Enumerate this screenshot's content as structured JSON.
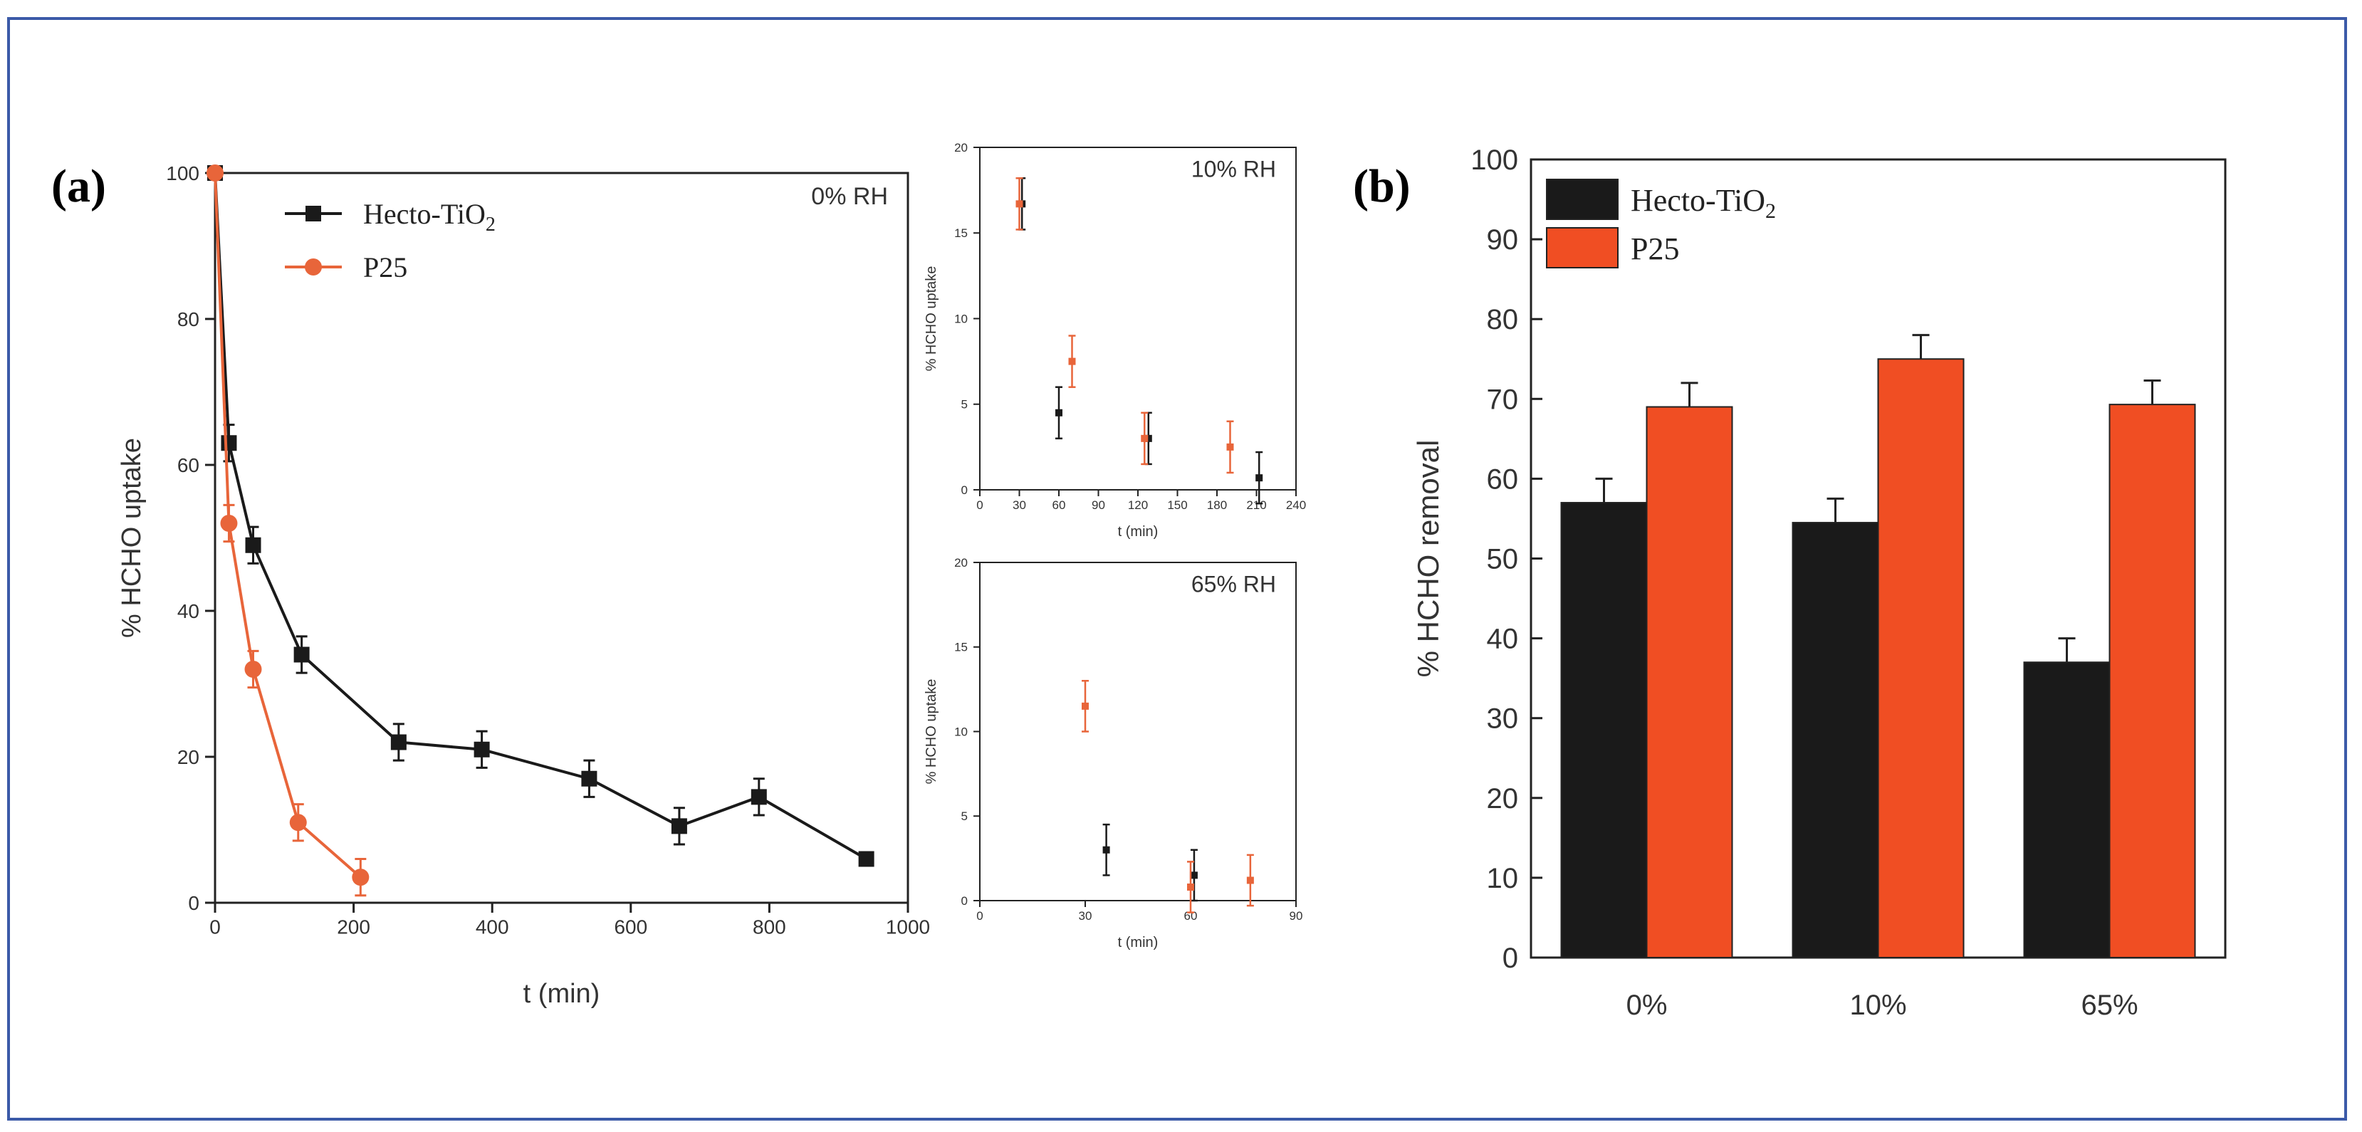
{
  "figure": {
    "panel_a_label": "(a)",
    "panel_b_label": "(b)",
    "colors": {
      "hecto": "#1a1a1a",
      "p25": "#e8653a",
      "p25_bar": "#f04e23",
      "frame": "#3b5aa8"
    }
  },
  "chart_data": [
    {
      "id": "main",
      "type": "line",
      "title": "0% RH",
      "xlabel": "t (min)",
      "ylabel": "% HCHO uptake",
      "xlim": [
        0,
        1000
      ],
      "ylim": [
        0,
        100
      ],
      "xticks": [
        0,
        200,
        400,
        600,
        800,
        1000
      ],
      "yticks": [
        0,
        20,
        40,
        60,
        80,
        100
      ],
      "legend": {
        "position": "top-left",
        "entries": [
          "Hecto-TiO",
          "P25"
        ],
        "subscript": "2"
      },
      "series": [
        {
          "name": "Hecto-TiO2",
          "color": "#1a1a1a",
          "marker": "square",
          "x": [
            0,
            20,
            55,
            125,
            265,
            385,
            540,
            670,
            785,
            940
          ],
          "y": [
            100,
            63,
            49,
            34,
            22,
            21,
            17,
            10.5,
            14.5,
            6
          ],
          "err": [
            0,
            2.5,
            2.5,
            2.5,
            2.5,
            2.5,
            2.5,
            2.5,
            2.5,
            0.5
          ]
        },
        {
          "name": "P25",
          "color": "#e8653a",
          "marker": "circle",
          "x": [
            0,
            20,
            55,
            120,
            210
          ],
          "y": [
            100,
            52,
            32,
            11,
            3.5
          ],
          "err": [
            0,
            2.5,
            2.5,
            2.5,
            2.5
          ]
        }
      ]
    },
    {
      "id": "inset10",
      "type": "scatter",
      "title": "10% RH",
      "xlabel": "t (min)",
      "ylabel": "% HCHO uptake",
      "xlim": [
        0,
        240
      ],
      "ylim": [
        0,
        20
      ],
      "xticks": [
        0,
        30,
        60,
        90,
        120,
        150,
        180,
        210,
        240
      ],
      "yticks": [
        0,
        5,
        10,
        15,
        20
      ],
      "series": [
        {
          "name": "Hecto-TiO2",
          "color": "#1a1a1a",
          "x": [
            32,
            60,
            128,
            212
          ],
          "y": [
            16.7,
            4.5,
            3.0,
            0.7
          ],
          "err": [
            1.5,
            1.5,
            1.5,
            1.5
          ]
        },
        {
          "name": "P25",
          "color": "#e8653a",
          "x": [
            30,
            70,
            125,
            190
          ],
          "y": [
            16.7,
            7.5,
            3.0,
            2.5
          ],
          "err": [
            1.5,
            1.5,
            1.5,
            1.5
          ]
        }
      ]
    },
    {
      "id": "inset65",
      "type": "scatter",
      "title": "65% RH",
      "xlabel": "t (min)",
      "ylabel": "% HCHO uptake",
      "xlim": [
        0,
        90
      ],
      "ylim": [
        0,
        20
      ],
      "xticks": [
        0,
        30,
        60,
        90
      ],
      "yticks": [
        0,
        5,
        10,
        15,
        20
      ],
      "series": [
        {
          "name": "Hecto-TiO2",
          "color": "#1a1a1a",
          "x": [
            36,
            61
          ],
          "y": [
            3.0,
            1.5
          ],
          "err": [
            1.5,
            1.5
          ]
        },
        {
          "name": "P25",
          "color": "#e8653a",
          "x": [
            30,
            60,
            77
          ],
          "y": [
            11.5,
            0.8,
            1.2
          ],
          "err": [
            1.5,
            1.5,
            1.5
          ]
        }
      ]
    },
    {
      "id": "bars",
      "type": "bar",
      "title": "",
      "xlabel": "",
      "ylabel": "% HCHO removal",
      "ylim": [
        0,
        100
      ],
      "yticks": [
        0,
        10,
        20,
        30,
        40,
        50,
        60,
        70,
        80,
        90,
        100
      ],
      "categories": [
        "0%",
        "10%",
        "65%"
      ],
      "legend": {
        "position": "top-left",
        "entries": [
          "Hecto-TiO",
          "P25"
        ],
        "subscript": "2"
      },
      "series": [
        {
          "name": "Hecto-TiO2",
          "color": "#1a1a1a",
          "values": [
            57,
            54.5,
            37
          ],
          "err": [
            3,
            3,
            3
          ]
        },
        {
          "name": "P25",
          "color": "#f04e23",
          "values": [
            69,
            75,
            69.3
          ],
          "err": [
            3,
            3,
            3
          ]
        }
      ]
    }
  ]
}
